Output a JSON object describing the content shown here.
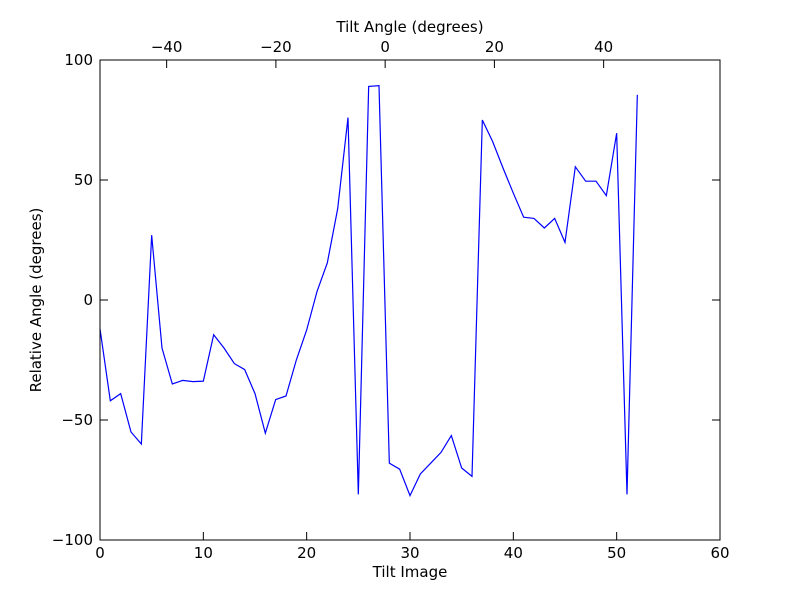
{
  "chart_data": {
    "type": "line",
    "title": "",
    "xlabel": "Tilt Image",
    "ylabel": "Relative Angle (degrees)",
    "top_xlabel": "Tilt Angle (degrees)",
    "xlim": [
      0,
      60
    ],
    "ylim": [
      -100,
      100
    ],
    "top_xlim": [
      -52.2,
      61.3
    ],
    "x_ticks": [
      0,
      10,
      20,
      30,
      40,
      50,
      60
    ],
    "y_ticks": [
      -100,
      -50,
      0,
      50,
      100
    ],
    "top_x_ticks": [
      -40,
      -20,
      0,
      20,
      40
    ],
    "x_tick_labels": [
      "0",
      "10",
      "20",
      "30",
      "40",
      "50",
      "60"
    ],
    "y_tick_labels": [
      "−100",
      "−50",
      "0",
      "50",
      "100"
    ],
    "top_x_tick_labels": [
      "−40",
      "−20",
      "0",
      "20",
      "40"
    ],
    "grid": false,
    "line_color": "#0000ff",
    "series": [
      {
        "x": [
          0,
          1,
          2,
          3,
          4,
          5,
          6,
          7,
          8,
          9,
          10,
          11,
          12,
          13,
          14,
          15,
          16,
          17,
          18,
          19,
          20,
          21,
          22,
          23,
          24,
          25,
          26,
          27,
          28,
          29,
          30,
          31,
          32,
          33,
          34,
          35,
          36,
          37,
          38,
          39,
          40,
          41,
          42,
          43,
          44,
          45,
          46,
          47,
          48,
          49,
          50,
          51,
          52
        ],
        "y": [
          -12,
          -42,
          -39,
          -55,
          -60,
          27,
          -20,
          -35,
          -33.5,
          -34,
          -33.8,
          -14.5,
          -20,
          -26.5,
          -29,
          -39,
          -55.5,
          -41.5,
          -40,
          -25,
          -12.5,
          3.5,
          15.5,
          38,
          76,
          -81,
          89,
          89.3,
          -68,
          -70.5,
          -81.5,
          -72.5,
          -68,
          -63.5,
          -56.5,
          -70,
          -73.5,
          75,
          66,
          55,
          44.5,
          34.5,
          34,
          30,
          34,
          24,
          55.5,
          49.5,
          49.5,
          43.5,
          69.5,
          -81,
          85.5
        ]
      }
    ]
  }
}
